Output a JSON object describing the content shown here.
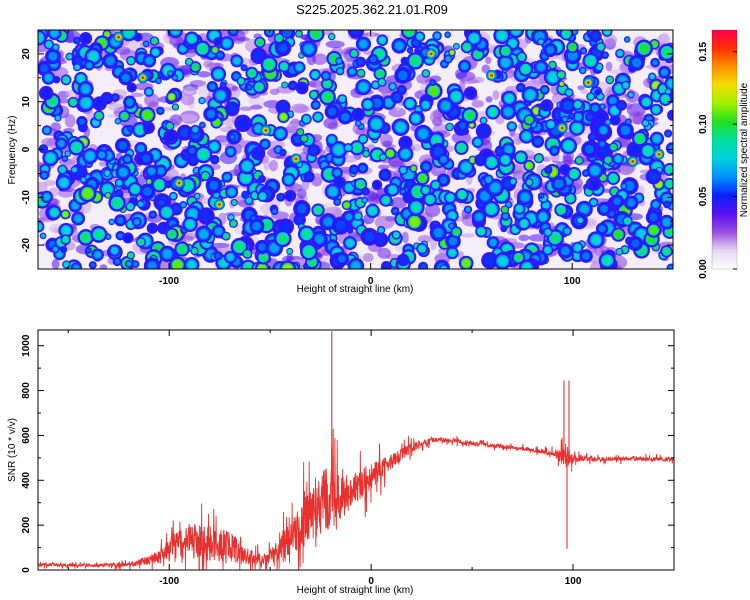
{
  "figure_title": "S225.2025.362.21.01.R09",
  "chart_data": [
    {
      "type": "heatmap",
      "title": "S225.2025.362.21.01.R09",
      "xlabel": "Height of straight line (km)",
      "ylabel": "Frequency (Hz)",
      "xlim": [
        -165,
        150
      ],
      "ylim": [
        -25,
        25
      ],
      "xticks": [
        -100,
        0,
        100
      ],
      "yticks": [
        -20,
        -10,
        0,
        10,
        20
      ],
      "colorbar": {
        "label": "Normalized spectral amplitude",
        "range": [
          0.0,
          0.165
        ],
        "ticks": [
          0.0,
          0.05,
          0.1,
          0.15
        ],
        "tick_labels": [
          "0.00",
          "0.05",
          "0.10",
          "0.15"
        ],
        "colormap": [
          "#ffffff",
          "#e6d6f0",
          "#9a50e0",
          "#5a10f0",
          "#0a20ff",
          "#0090ff",
          "#00d0e0",
          "#00e0a0",
          "#20e020",
          "#a0f000",
          "#f0e000",
          "#ff9000",
          "#ff3000",
          "#ff0050"
        ]
      },
      "description_values": "dense speckle field; background mostly 0.00-0.03, blobs 0.03-0.09, a few peaks near 0.13-0.16"
    },
    {
      "type": "line",
      "xlabel": "Height of straight line (km)",
      "ylabel": "SNR (10 * v/v)",
      "xlim": [
        -165,
        150
      ],
      "ylim": [
        0,
        1070
      ],
      "xticks": [
        -100,
        0,
        100
      ],
      "yticks": [
        0,
        200,
        400,
        600,
        800,
        1000
      ],
      "series_color": "#e8312e",
      "envelope": {
        "x": [
          -165,
          -140,
          -120,
          -105,
          -98,
          -90,
          -80,
          -70,
          -60,
          -52,
          -45,
          -38,
          -30,
          -25,
          -20,
          -15,
          -10,
          -5,
          0,
          5,
          10,
          20,
          30,
          40,
          50,
          60,
          70,
          80,
          90,
          95,
          97,
          100,
          110,
          120,
          130,
          140,
          150
        ],
        "base": [
          25,
          20,
          25,
          55,
          100,
          130,
          120,
          100,
          55,
          50,
          95,
          160,
          240,
          300,
          320,
          320,
          350,
          380,
          420,
          440,
          480,
          545,
          580,
          578,
          565,
          555,
          545,
          535,
          520,
          505,
          500,
          500,
          495,
          495,
          495,
          495,
          495
        ],
        "amp": [
          12,
          10,
          15,
          45,
          110,
          130,
          140,
          120,
          60,
          40,
          90,
          140,
          200,
          250,
          230,
          170,
          120,
          110,
          100,
          90,
          70,
          35,
          18,
          15,
          15,
          15,
          15,
          15,
          20,
          60,
          90,
          30,
          15,
          15,
          15,
          15,
          15
        ]
      },
      "spikes": [
        {
          "x": -19.5,
          "y": 1065
        },
        {
          "x": -19.0,
          "y": 300
        },
        {
          "x": 95.5,
          "y": 845
        },
        {
          "x": 97.0,
          "y": 95
        },
        {
          "x": 98.0,
          "y": 845
        }
      ]
    }
  ]
}
